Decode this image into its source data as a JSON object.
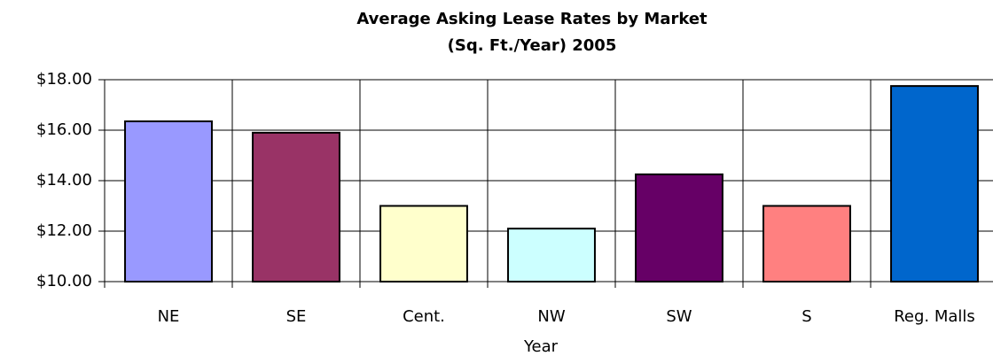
{
  "chart_data": {
    "type": "bar",
    "title": "Average Asking Lease Rates by Market",
    "subtitle": "(Sq. Ft./Year) 2005",
    "x_label": "Year",
    "categories": [
      "NE",
      "SE",
      "Cent.",
      "NW",
      "SW",
      "S",
      "Reg. Malls"
    ],
    "values": [
      16.35,
      15.9,
      13.0,
      12.1,
      14.25,
      13.0,
      17.75
    ],
    "colors": [
      "#9999ff",
      "#993366",
      "#ffffcc",
      "#ccffff",
      "#660066",
      "#ff8080",
      "#0066cc"
    ],
    "ylim": [
      10,
      18
    ],
    "yticks": [
      {
        "value": 10,
        "label": "$10.00"
      },
      {
        "value": 12,
        "label": "$12.00"
      },
      {
        "value": 14,
        "label": "$14.00"
      },
      {
        "value": 16,
        "label": "$16.00"
      },
      {
        "value": 18,
        "label": "$18.00"
      }
    ],
    "grid": true
  }
}
